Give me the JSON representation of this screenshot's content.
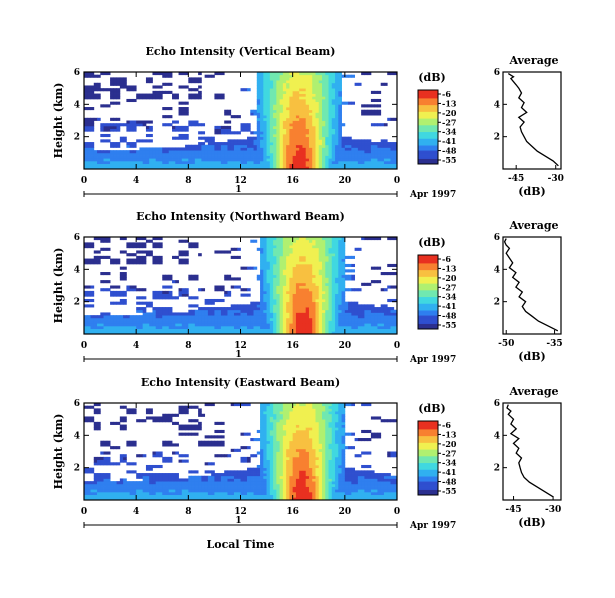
{
  "figure": {
    "xlabel": "Local Time",
    "date_label": "Apr 1997",
    "day_label": "1"
  },
  "colormap": [
    "#2b2f8f",
    "#2f4fcf",
    "#2f7fef",
    "#30b0f0",
    "#40d8e0",
    "#70e8b0",
    "#b0f070",
    "#f0f050",
    "#f8c040",
    "#f88030",
    "#e83020"
  ],
  "chart_data": [
    {
      "type": "heatmap",
      "title": "Echo Intensity (Vertical Beam)",
      "xlabel": "",
      "ylabel": "Height (km)",
      "xticks": [
        "0",
        "4",
        "8",
        "12",
        "16",
        "20",
        "0"
      ],
      "yticks": [
        "2",
        "4",
        "6"
      ],
      "colorbar_unit": "(dB)",
      "colorbar_ticks": [
        "-6",
        "-13",
        "-20",
        "-27",
        "-34",
        "-41",
        "-48",
        "-55"
      ],
      "xlim": [
        0,
        24
      ],
      "ylim": [
        0,
        6
      ],
      "peak_hour": 16.5,
      "profile": {
        "title": "Average",
        "xlabel": "(dB)",
        "xticks": [
          "-45",
          "-30"
        ],
        "yticks": [
          "2",
          "4",
          "6"
        ],
        "xlim": [
          -50,
          -28
        ],
        "ylim": [
          0,
          6
        ],
        "x": [
          -29,
          -31,
          -34,
          -37,
          -39,
          -41,
          -42,
          -43,
          -43.5,
          -42,
          -44,
          -41,
          -43,
          -42,
          -44,
          -43,
          -44,
          -45,
          -46,
          -47,
          -46,
          -47,
          -48
        ],
        "y": [
          0.2,
          0.5,
          0.8,
          1.1,
          1.4,
          1.7,
          2.0,
          2.3,
          2.6,
          2.9,
          3.2,
          3.5,
          3.8,
          4.1,
          4.4,
          4.7,
          5.0,
          5.2,
          5.4,
          5.6,
          5.7,
          5.8,
          5.9
        ]
      }
    },
    {
      "type": "heatmap",
      "title": "Echo Intensity (Northward Beam)",
      "xlabel": "",
      "ylabel": "Height (km)",
      "xticks": [
        "0",
        "4",
        "8",
        "12",
        "16",
        "20",
        "0"
      ],
      "yticks": [
        "2",
        "4",
        "6"
      ],
      "colorbar_unit": "(dB)",
      "colorbar_ticks": [
        "-6",
        "-13",
        "-20",
        "-27",
        "-34",
        "-41",
        "-48",
        "-55"
      ],
      "xlim": [
        0,
        24
      ],
      "ylim": [
        0,
        6
      ],
      "peak_hour": 16.8,
      "profile": {
        "title": "Average",
        "xlabel": "(dB)",
        "xticks": [
          "-50",
          "-35"
        ],
        "yticks": [
          "2",
          "4",
          "6"
        ],
        "xlim": [
          -51,
          -33
        ],
        "ylim": [
          0,
          6
        ],
        "x": [
          -34,
          -37,
          -40,
          -42,
          -44,
          -45,
          -44,
          -46,
          -45,
          -47,
          -46,
          -48,
          -47,
          -49,
          -48,
          -49,
          -50,
          -49,
          -50,
          -50.5,
          -50
        ],
        "y": [
          0.2,
          0.5,
          0.8,
          1.1,
          1.4,
          1.7,
          2.0,
          2.3,
          2.6,
          2.9,
          3.2,
          3.5,
          3.8,
          4.1,
          4.4,
          4.7,
          5.0,
          5.3,
          5.5,
          5.7,
          5.9
        ]
      }
    },
    {
      "type": "heatmap",
      "title": "Echo Intensity (Eastward Beam)",
      "xlabel": "Local Time",
      "ylabel": "Height (km)",
      "xticks": [
        "0",
        "4",
        "8",
        "12",
        "16",
        "20",
        "0"
      ],
      "yticks": [
        "2",
        "4",
        "6"
      ],
      "colorbar_unit": "(dB)",
      "colorbar_ticks": [
        "-6",
        "-13",
        "-20",
        "-27",
        "-34",
        "-41",
        "-48",
        "-55"
      ],
      "xlim": [
        0,
        24
      ],
      "ylim": [
        0,
        6
      ],
      "peak_hour": 16.7,
      "profile": {
        "title": "Average",
        "xlabel": "(dB)",
        "xticks": [
          "-45",
          "-30"
        ],
        "yticks": [
          "2",
          "4",
          "6"
        ],
        "xlim": [
          -49,
          -27
        ],
        "ylim": [
          0,
          6
        ],
        "x": [
          -30,
          -33,
          -36,
          -39,
          -41,
          -42,
          -42.5,
          -43,
          -42,
          -44,
          -43,
          -45,
          -43,
          -46,
          -44,
          -46,
          -45,
          -47,
          -46,
          -47.5,
          -47
        ],
        "y": [
          0.2,
          0.5,
          0.8,
          1.1,
          1.4,
          1.7,
          2.0,
          2.3,
          2.6,
          2.9,
          3.2,
          3.5,
          3.8,
          4.1,
          4.4,
          4.7,
          5.0,
          5.3,
          5.5,
          5.7,
          5.9
        ]
      }
    }
  ]
}
